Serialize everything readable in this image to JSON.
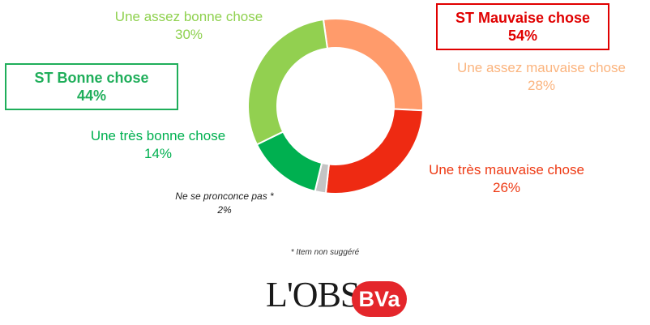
{
  "chart_data": {
    "type": "donut",
    "slices": [
      {
        "label": "Une assez mauvaise chose",
        "value": 28,
        "value_label": "28%",
        "color": "#ff9b6b"
      },
      {
        "label": "Une très mauvaise chose",
        "value": 26,
        "value_label": "26%",
        "color": "#ee2a12"
      },
      {
        "label": "Ne se pronconce pas *",
        "value": 2,
        "value_label": "2%",
        "color": "#c4c4c4"
      },
      {
        "label": "Une très bonne chose",
        "value": 14,
        "value_label": "14%",
        "color": "#00b050"
      },
      {
        "label": "Une assez bonne chose",
        "value": 30,
        "value_label": "30%",
        "color": "#92d050"
      }
    ],
    "label_colors": [
      "#fbb47e",
      "#ee3a14",
      "#222222",
      "#00b050",
      "#8fd14f"
    ],
    "summaries": [
      {
        "label": "ST Mauvaise chose",
        "value": "54%",
        "color": "#e00000"
      },
      {
        "label": "ST Bonne chose",
        "value": "44%",
        "color": "#1fae5a"
      }
    ]
  },
  "footnote": "* Item non suggéré",
  "logos": {
    "obs": "L'OBS",
    "bva": "BVa",
    "bva_color": "#e4262b"
  }
}
